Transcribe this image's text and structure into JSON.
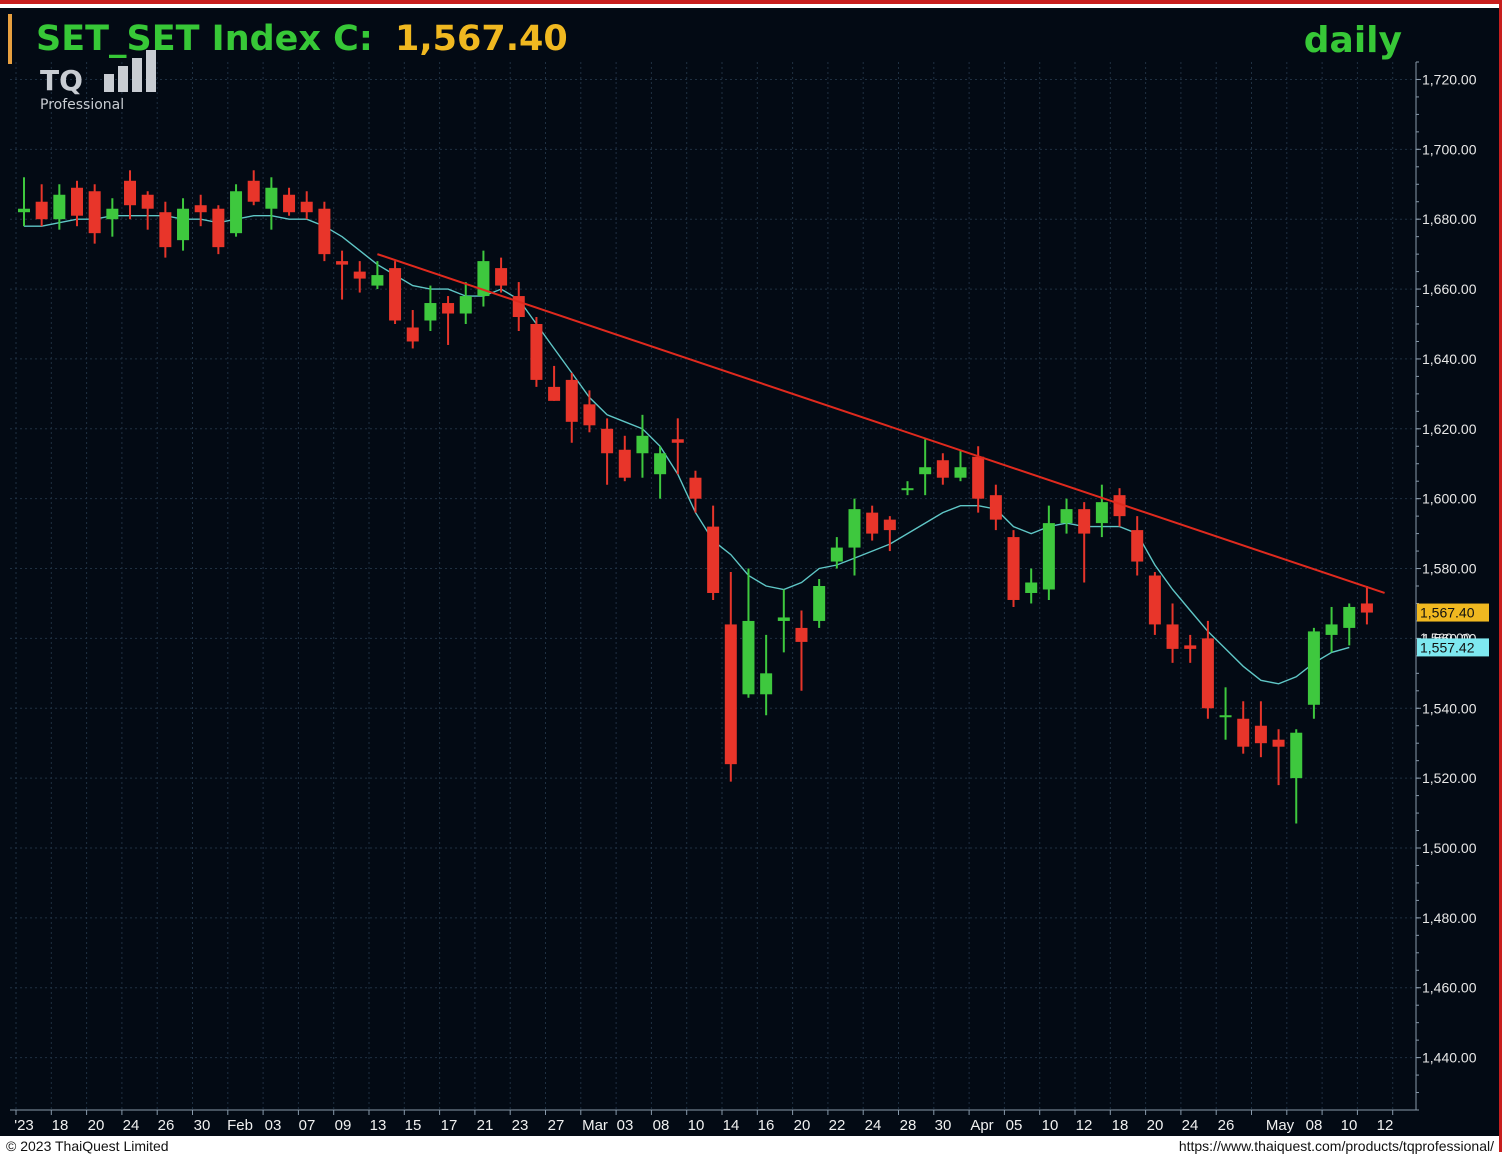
{
  "header": {
    "title_prefix": "SET_SET Index C:",
    "title_value": "1,567.40",
    "timeframe": "daily",
    "title_color": "#37c837",
    "value_color": "#f0b820"
  },
  "logo": {
    "mark": "TQ",
    "sub": "Professional"
  },
  "footer": {
    "copyright": "© 2023 ThaiQuest Limited",
    "url": "https://www.thaiquest.com/products/tqprofessional/"
  },
  "colors": {
    "background": "#030a14",
    "up": "#3ec83e",
    "down": "#e8352a",
    "ma": "#5fc6c6",
    "trendline": "#e02a1e",
    "grid": "#1f3042",
    "last_price_tag": "#f0b820",
    "ma_tag": "#7ee8f0"
  },
  "chart_data": {
    "type": "candlestick",
    "title": "SET_SET Index C: 1,567.40",
    "period": "daily",
    "ylim": [
      1425,
      1725
    ],
    "yticks": [
      1720,
      1700,
      1680,
      1660,
      1640,
      1620,
      1600,
      1580,
      1560,
      1540,
      1520,
      1500,
      1480,
      1460,
      1440
    ],
    "ytick_labels": [
      "1,720.00",
      "1,700.00",
      "1,680.00",
      "1,660.00",
      "1,640.00",
      "1,620.00",
      "1,600.00",
      "1,580.00",
      "1,560.00",
      "1,540.00",
      "1,520.00",
      "1,500.00",
      "1,480.00",
      "1,460.00",
      "1,440.00"
    ],
    "xtick_labels": [
      "'23",
      "18",
      "20",
      "24",
      "26",
      "30",
      "Feb",
      "03",
      "07",
      "09",
      "13",
      "15",
      "17",
      "21",
      "23",
      "27",
      "Mar",
      "03",
      "08",
      "10",
      "14",
      "16",
      "20",
      "22",
      "24",
      "28",
      "30",
      "Apr",
      "05",
      "10",
      "12",
      "18",
      "20",
      "24",
      "26",
      "May",
      "08",
      "10",
      "12"
    ],
    "last_price": 1567.4,
    "last_price_label": "1,567.40",
    "ma_last": 1557.42,
    "ma_last_label": "1,557.42",
    "partial_label": "1,560.00",
    "trendline": {
      "start": [
        20,
        1670
      ],
      "end": [
        77,
        1573
      ]
    },
    "candles": [
      {
        "o": 1682,
        "h": 1692,
        "l": 1678,
        "c": 1683
      },
      {
        "o": 1685,
        "h": 1690,
        "l": 1678,
        "c": 1680
      },
      {
        "o": 1680,
        "h": 1690,
        "l": 1677,
        "c": 1687
      },
      {
        "o": 1689,
        "h": 1691,
        "l": 1678,
        "c": 1681
      },
      {
        "o": 1688,
        "h": 1690,
        "l": 1673,
        "c": 1676
      },
      {
        "o": 1680,
        "h": 1686,
        "l": 1675,
        "c": 1683
      },
      {
        "o": 1691,
        "h": 1694,
        "l": 1680,
        "c": 1684
      },
      {
        "o": 1687,
        "h": 1688,
        "l": 1677,
        "c": 1683
      },
      {
        "o": 1682,
        "h": 1685,
        "l": 1669,
        "c": 1672
      },
      {
        "o": 1674,
        "h": 1686,
        "l": 1671,
        "c": 1683
      },
      {
        "o": 1684,
        "h": 1687,
        "l": 1678,
        "c": 1682
      },
      {
        "o": 1683,
        "h": 1684,
        "l": 1670,
        "c": 1672
      },
      {
        "o": 1676,
        "h": 1690,
        "l": 1675,
        "c": 1688
      },
      {
        "o": 1691,
        "h": 1694,
        "l": 1684,
        "c": 1685
      },
      {
        "o": 1683,
        "h": 1692,
        "l": 1677,
        "c": 1689
      },
      {
        "o": 1687,
        "h": 1689,
        "l": 1681,
        "c": 1682
      },
      {
        "o": 1685,
        "h": 1688,
        "l": 1680,
        "c": 1682
      },
      {
        "o": 1683,
        "h": 1685,
        "l": 1668,
        "c": 1670
      },
      {
        "o": 1668,
        "h": 1671,
        "l": 1657,
        "c": 1667
      },
      {
        "o": 1665,
        "h": 1668,
        "l": 1659,
        "c": 1663
      },
      {
        "o": 1661,
        "h": 1668,
        "l": 1660,
        "c": 1664
      },
      {
        "o": 1666,
        "h": 1668,
        "l": 1650,
        "c": 1651
      },
      {
        "o": 1649,
        "h": 1654,
        "l": 1643,
        "c": 1645
      },
      {
        "o": 1651,
        "h": 1661,
        "l": 1648,
        "c": 1656
      },
      {
        "o": 1656,
        "h": 1658,
        "l": 1644,
        "c": 1653
      },
      {
        "o": 1653,
        "h": 1662,
        "l": 1650,
        "c": 1658
      },
      {
        "o": 1658,
        "h": 1671,
        "l": 1655,
        "c": 1668
      },
      {
        "o": 1666,
        "h": 1669,
        "l": 1659,
        "c": 1661
      },
      {
        "o": 1658,
        "h": 1662,
        "l": 1648,
        "c": 1652
      },
      {
        "o": 1650,
        "h": 1652,
        "l": 1632,
        "c": 1634
      },
      {
        "o": 1632,
        "h": 1638,
        "l": 1628,
        "c": 1628
      },
      {
        "o": 1634,
        "h": 1636,
        "l": 1616,
        "c": 1622
      },
      {
        "o": 1627,
        "h": 1631,
        "l": 1619,
        "c": 1621
      },
      {
        "o": 1620,
        "h": 1623,
        "l": 1604,
        "c": 1613
      },
      {
        "o": 1614,
        "h": 1618,
        "l": 1605,
        "c": 1606
      },
      {
        "o": 1613,
        "h": 1624,
        "l": 1606,
        "c": 1618
      },
      {
        "o": 1607,
        "h": 1615,
        "l": 1600,
        "c": 1613
      },
      {
        "o": 1617,
        "h": 1623,
        "l": 1607,
        "c": 1616
      },
      {
        "o": 1606,
        "h": 1608,
        "l": 1596,
        "c": 1600
      },
      {
        "o": 1592,
        "h": 1598,
        "l": 1571,
        "c": 1573
      },
      {
        "o": 1564,
        "h": 1579,
        "l": 1519,
        "c": 1524
      },
      {
        "o": 1544,
        "h": 1580,
        "l": 1543,
        "c": 1565
      },
      {
        "o": 1544,
        "h": 1561,
        "l": 1538,
        "c": 1550
      },
      {
        "o": 1565,
        "h": 1574,
        "l": 1556,
        "c": 1566
      },
      {
        "o": 1563,
        "h": 1568,
        "l": 1545,
        "c": 1559
      },
      {
        "o": 1565,
        "h": 1577,
        "l": 1563,
        "c": 1575
      },
      {
        "o": 1582,
        "h": 1589,
        "l": 1580,
        "c": 1586
      },
      {
        "o": 1586,
        "h": 1600,
        "l": 1578,
        "c": 1597
      },
      {
        "o": 1596,
        "h": 1598,
        "l": 1588,
        "c": 1590
      },
      {
        "o": 1594,
        "h": 1595,
        "l": 1585,
        "c": 1591
      },
      {
        "o": 1603,
        "h": 1605,
        "l": 1601,
        "c": 1603
      },
      {
        "o": 1607,
        "h": 1617,
        "l": 1601,
        "c": 1609
      },
      {
        "o": 1611,
        "h": 1613,
        "l": 1604,
        "c": 1606
      },
      {
        "o": 1606,
        "h": 1614,
        "l": 1605,
        "c": 1609
      },
      {
        "o": 1612,
        "h": 1615,
        "l": 1596,
        "c": 1600
      },
      {
        "o": 1601,
        "h": 1604,
        "l": 1591,
        "c": 1594
      },
      {
        "o": 1589,
        "h": 1591,
        "l": 1569,
        "c": 1571
      },
      {
        "o": 1573,
        "h": 1580,
        "l": 1570,
        "c": 1576
      },
      {
        "o": 1574,
        "h": 1598,
        "l": 1571,
        "c": 1593
      },
      {
        "o": 1593,
        "h": 1600,
        "l": 1590,
        "c": 1597
      },
      {
        "o": 1597,
        "h": 1599,
        "l": 1576,
        "c": 1590
      },
      {
        "o": 1593,
        "h": 1604,
        "l": 1589,
        "c": 1599
      },
      {
        "o": 1601,
        "h": 1603,
        "l": 1592,
        "c": 1595
      },
      {
        "o": 1591,
        "h": 1595,
        "l": 1578,
        "c": 1582
      },
      {
        "o": 1578,
        "h": 1579,
        "l": 1561,
        "c": 1564
      },
      {
        "o": 1564,
        "h": 1570,
        "l": 1553,
        "c": 1557
      },
      {
        "o": 1558,
        "h": 1561,
        "l": 1553,
        "c": 1557
      },
      {
        "o": 1560,
        "h": 1565,
        "l": 1537,
        "c": 1540
      },
      {
        "o": 1538,
        "h": 1546,
        "l": 1531,
        "c": 1538
      },
      {
        "o": 1537,
        "h": 1542,
        "l": 1527,
        "c": 1529
      },
      {
        "o": 1535,
        "h": 1542,
        "l": 1526,
        "c": 1530
      },
      {
        "o": 1531,
        "h": 1534,
        "l": 1518,
        "c": 1529
      },
      {
        "o": 1520,
        "h": 1534,
        "l": 1507,
        "c": 1533
      },
      {
        "o": 1541,
        "h": 1563,
        "l": 1537,
        "c": 1562
      },
      {
        "o": 1561,
        "h": 1569,
        "l": 1556,
        "c": 1564
      },
      {
        "o": 1563,
        "h": 1570,
        "l": 1558,
        "c": 1569
      },
      {
        "o": 1570,
        "h": 1575,
        "l": 1564,
        "c": 1567.4
      }
    ],
    "ma": [
      1678,
      1678,
      1679,
      1680,
      1680,
      1681,
      1681,
      1681,
      1681,
      1680,
      1680,
      1679,
      1680,
      1681,
      1681,
      1680,
      1680,
      1678,
      1675,
      1671,
      1667,
      1664,
      1661,
      1660,
      1660,
      1658,
      1658,
      1660,
      1657,
      1650,
      1643,
      1636,
      1629,
      1624,
      1622,
      1620,
      1615,
      1607,
      1596,
      1588,
      1584,
      1578,
      1575,
      1574,
      1576,
      1580,
      1581,
      1583,
      1585,
      1587,
      1590,
      1593,
      1596,
      1598,
      1598,
      1597,
      1592,
      1590,
      1592,
      1593,
      1592,
      1592,
      1592,
      1590,
      1581,
      1574,
      1568,
      1562,
      1557,
      1552,
      1548,
      1547,
      1549,
      1553,
      1556,
      1557.42
    ]
  }
}
